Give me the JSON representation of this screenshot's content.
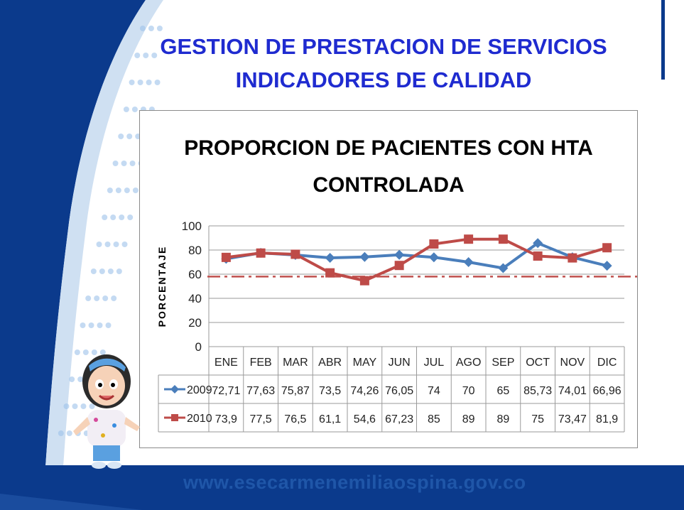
{
  "slide": {
    "title_line1": "GESTION DE PRESTACION DE SERVICIOS",
    "title_line2": "INDICADORES DE CALIDAD",
    "footer_url": "www.esecarmenemiliaospina.gov.co"
  },
  "colors": {
    "title": "#1f2bd0",
    "brand_blue": "#0b3a8c",
    "series_2009": "#4a7ebb",
    "series_2010": "#be4b48",
    "threshold": "#c0504d"
  },
  "chart_data": {
    "type": "line",
    "title": "PROPORCION DE PACIENTES CON HTA CONTROLADA",
    "ylabel": "PORCENTAJE",
    "xlabel": "",
    "ylim": [
      0,
      100
    ],
    "yticks": [
      0,
      20,
      40,
      60,
      80,
      100
    ],
    "grid": true,
    "legend": "data-table",
    "categories": [
      "ENE",
      "FEB",
      "MAR",
      "ABR",
      "MAY",
      "JUN",
      "JUL",
      "AGO",
      "SEP",
      "OCT",
      "NOV",
      "DIC"
    ],
    "series": [
      {
        "name": "2009",
        "values": [
          72.71,
          77.63,
          75.87,
          73.5,
          74.26,
          76.05,
          74,
          70,
          65,
          85.73,
          74.01,
          66.96
        ],
        "labels": [
          "72,71",
          "77,63",
          "75,87",
          "73,5",
          "74,26",
          "76,05",
          "74",
          "70",
          "65",
          "85,73",
          "74,01",
          "66,96"
        ],
        "marker": "diamond"
      },
      {
        "name": "2010",
        "values": [
          73.9,
          77.5,
          76.5,
          61.1,
          54.6,
          67.23,
          85,
          89,
          89,
          75,
          73.47,
          81.9
        ],
        "labels": [
          "73,9",
          "77,5",
          "76,5",
          "61,1",
          "54,6",
          "67,23",
          "85",
          "89",
          "89",
          "75",
          "73,47",
          "81,9"
        ],
        "marker": "square"
      }
    ],
    "reference_line": {
      "value": 58,
      "style": "dash-dot"
    }
  }
}
